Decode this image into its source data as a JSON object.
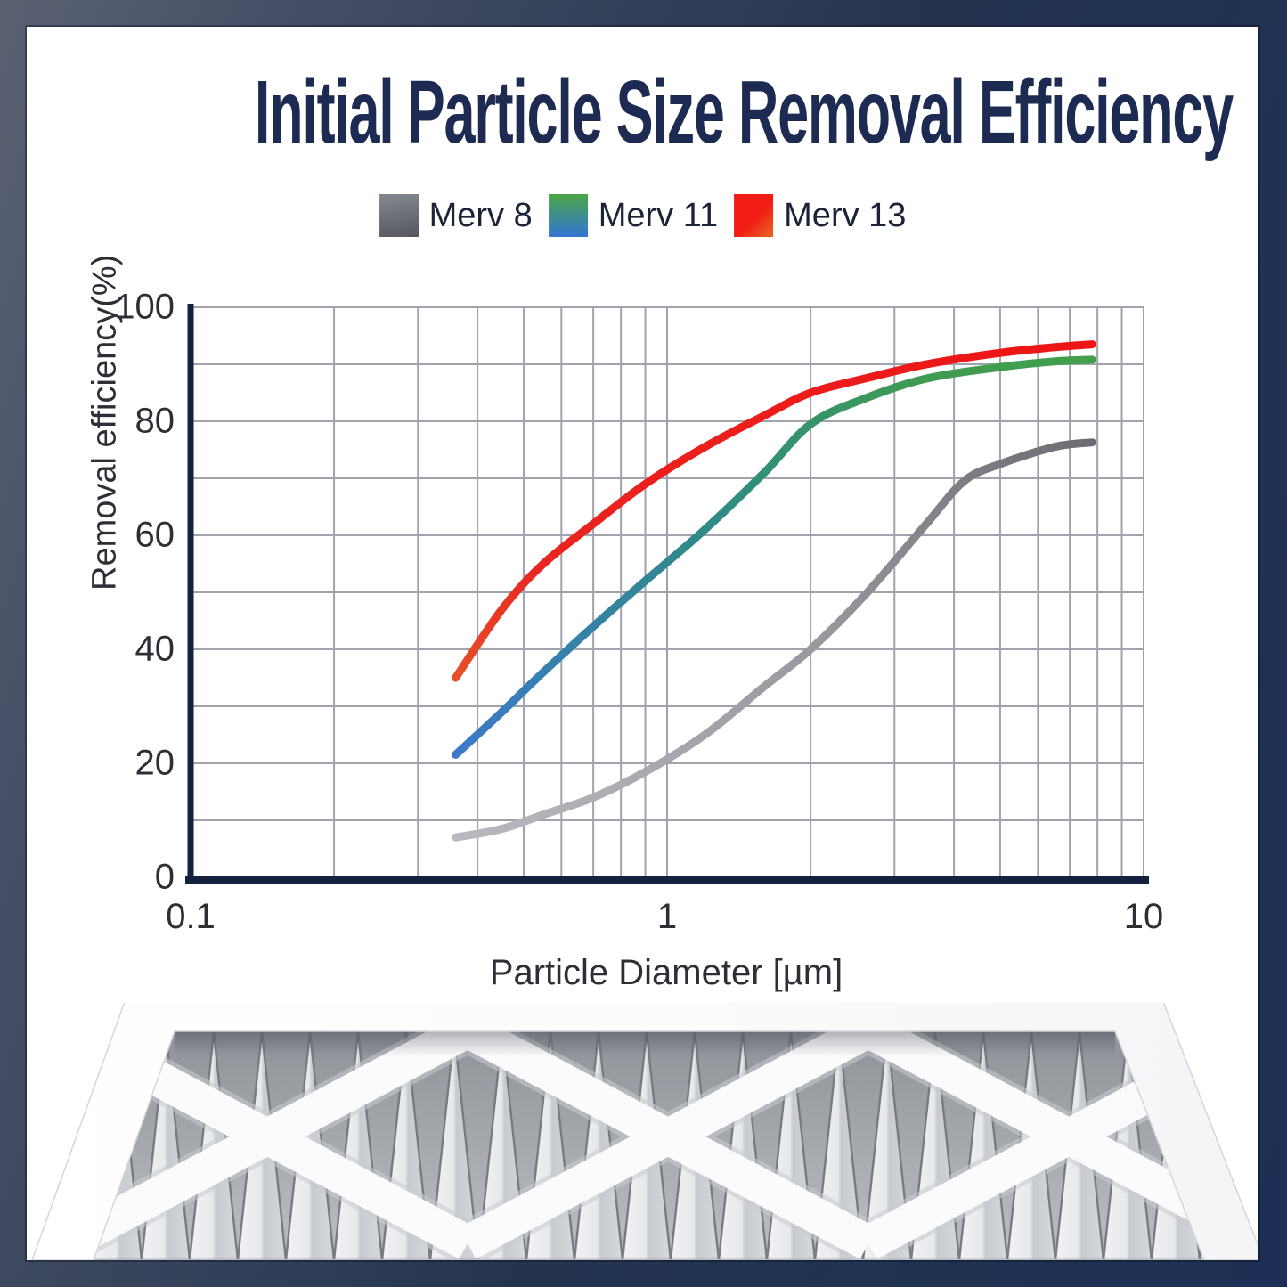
{
  "page": {
    "title": "Initial Particle Size Removal Efficiency"
  },
  "legend": [
    {
      "label": "Merv 8",
      "swatch": {
        "angle": 170,
        "from": "#85888f",
        "from_stop": 0,
        "to": "#54575d"
      }
    },
    {
      "label": "Merv 11",
      "swatch": {
        "angle": 180,
        "from": "#4aa545",
        "from_stop": 0,
        "to": "#3376d6"
      }
    },
    {
      "label": "Merv 13",
      "swatch": {
        "angle": 135,
        "from": "#f21d15",
        "from_stop": 55,
        "to": "#e56722"
      }
    }
  ],
  "chart_data": {
    "type": "line",
    "title": "",
    "xlabel": "Particle Diameter [µm]",
    "ylabel": "Removal efficiency(%)",
    "x_scale": "log",
    "xlim": [
      0.1,
      10
    ],
    "ylim": [
      0,
      100
    ],
    "grid": true,
    "legend_position": "top",
    "x_ticks": [
      {
        "value": 0.1,
        "label": "0.1"
      },
      {
        "value": 1,
        "label": "1"
      },
      {
        "value": 10,
        "label": "10"
      }
    ],
    "y_ticks": [
      {
        "value": 0,
        "label": "0"
      },
      {
        "value": 20,
        "label": "20"
      },
      {
        "value": 40,
        "label": "40"
      },
      {
        "value": 60,
        "label": "60"
      },
      {
        "value": 80,
        "label": "80"
      },
      {
        "value": 100,
        "label": "100"
      }
    ],
    "x_gridlines": [
      0.2,
      0.3,
      0.4,
      0.5,
      0.6,
      0.7,
      0.8,
      0.9,
      1,
      2,
      3,
      4,
      5,
      6,
      7,
      8,
      9,
      10
    ],
    "y_gridlines": [
      10,
      20,
      30,
      40,
      50,
      60,
      70,
      80,
      90,
      100
    ],
    "series": [
      {
        "name": "Merv 8",
        "gradient": [
          {
            "offset": 0,
            "color": "#b8b9bf"
          },
          {
            "offset": 0.55,
            "color": "#98999f"
          },
          {
            "offset": 1,
            "color": "#6c6d73"
          }
        ],
        "points": [
          [
            0.36,
            7
          ],
          [
            0.45,
            8.5
          ],
          [
            0.55,
            11
          ],
          [
            0.7,
            14
          ],
          [
            0.9,
            18.5
          ],
          [
            1.2,
            25
          ],
          [
            1.6,
            33.5
          ],
          [
            2.0,
            40
          ],
          [
            2.6,
            49.5
          ],
          [
            3.5,
            62
          ],
          [
            4.2,
            69.5
          ],
          [
            5.0,
            72.5
          ],
          [
            6.5,
            75.5
          ],
          [
            7.8,
            76.3
          ]
        ]
      },
      {
        "name": "Merv 11",
        "gradient": [
          {
            "offset": 0,
            "color": "#3c79c9"
          },
          {
            "offset": 0.45,
            "color": "#2f8b85"
          },
          {
            "offset": 0.8,
            "color": "#3f9b51"
          },
          {
            "offset": 1,
            "color": "#41a04e"
          }
        ],
        "points": [
          [
            0.36,
            21.5
          ],
          [
            0.45,
            29
          ],
          [
            0.55,
            36
          ],
          [
            0.7,
            44
          ],
          [
            0.9,
            52
          ],
          [
            1.2,
            61
          ],
          [
            1.6,
            71
          ],
          [
            2.0,
            79.5
          ],
          [
            2.6,
            84
          ],
          [
            3.5,
            87.5
          ],
          [
            5.0,
            89.5
          ],
          [
            6.5,
            90.5
          ],
          [
            7.8,
            90.8
          ]
        ]
      },
      {
        "name": "Merv 13",
        "gradient": [
          {
            "offset": 0,
            "color": "#e6502a"
          },
          {
            "offset": 0.18,
            "color": "#ea2420"
          },
          {
            "offset": 1,
            "color": "#ed1515"
          }
        ],
        "points": [
          [
            0.36,
            35
          ],
          [
            0.45,
            47
          ],
          [
            0.55,
            55
          ],
          [
            0.7,
            62
          ],
          [
            0.9,
            69
          ],
          [
            1.2,
            75.5
          ],
          [
            1.6,
            81
          ],
          [
            2.0,
            85
          ],
          [
            2.6,
            87.5
          ],
          [
            3.5,
            90
          ],
          [
            5.0,
            92
          ],
          [
            6.5,
            93
          ],
          [
            7.8,
            93.5
          ]
        ]
      }
    ]
  },
  "footer_image": {
    "name": "pleated-air-filter"
  }
}
